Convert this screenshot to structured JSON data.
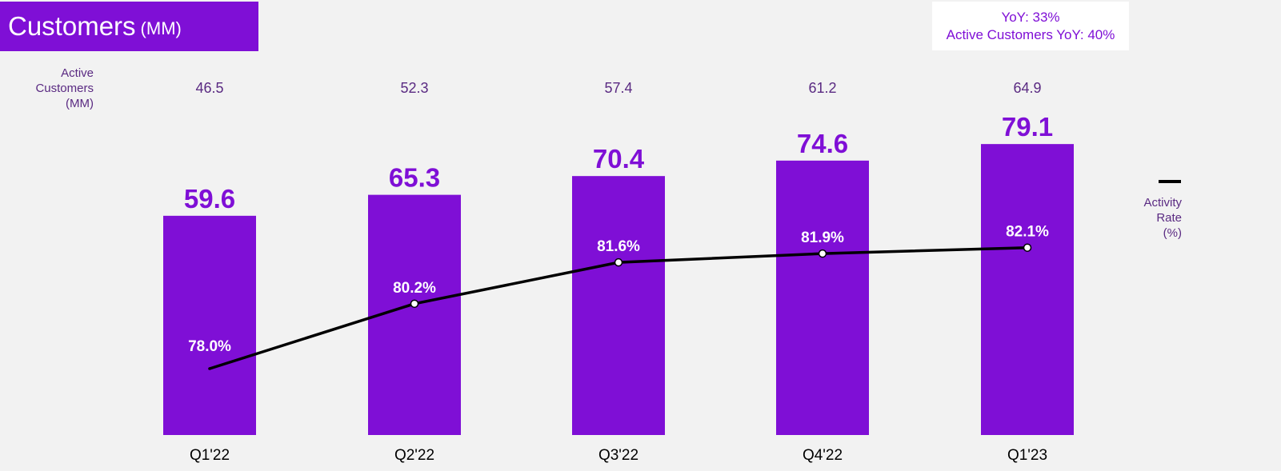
{
  "header": {
    "title": "Customers",
    "title_unit": "(MM)"
  },
  "yoy": {
    "line1": "YoY: 33%",
    "line2": "Active Customers YoY: 40%"
  },
  "active_customers_label": [
    "Active",
    "Customers",
    "(MM)"
  ],
  "legend": {
    "activity_rate_label": [
      "Activity",
      "Rate",
      "(%)"
    ]
  },
  "colors": {
    "bar": "#7f0fd6",
    "line": "#000000",
    "active_text": "#5a2a82",
    "label_text": "#ffffff"
  },
  "chart_data": {
    "type": "bar",
    "categories": [
      "Q1'22",
      "Q2'22",
      "Q3'22",
      "Q4'22",
      "Q1'23"
    ],
    "series": [
      {
        "values": [
          59.6,
          65.3,
          70.4,
          74.6,
          79.1
        ]
      },
      {
        "type": "line",
        "values": [
          78.0,
          80.2,
          81.6,
          81.9,
          82.1
        ],
        "labels": [
          "78.0%",
          "80.2%",
          "81.6%",
          "81.9%",
          "82.1%"
        ]
      }
    ],
    "active_customers": [
      "46.5",
      "52.3",
      "57.4",
      "61.2",
      "64.9"
    ],
    "bar_labels": [
      "59.6",
      "65.3",
      "70.4",
      "74.6",
      "79.1"
    ]
  }
}
